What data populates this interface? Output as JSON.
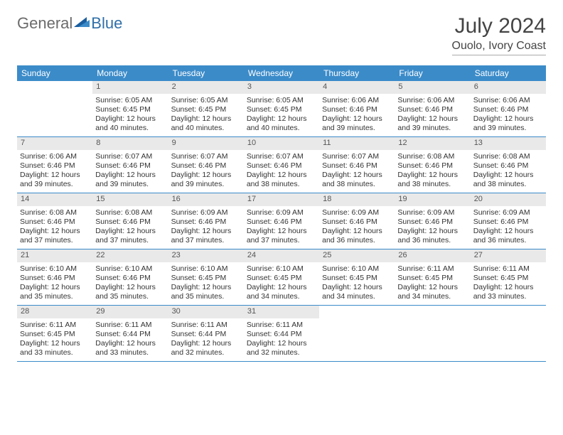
{
  "brand": {
    "text1": "General",
    "text2": "Blue"
  },
  "title": "July 2024",
  "location": "Ouolo, Ivory Coast",
  "colors": {
    "header_bg": "#3b8bc9",
    "header_text": "#ffffff",
    "daynum_bg": "#e9e9e9",
    "week_border": "#3b8bc9",
    "brand_gray": "#6b6b6b",
    "brand_blue": "#2f6fa8",
    "text": "#333333"
  },
  "typography": {
    "title_fontsize": 30,
    "location_fontsize": 16,
    "dayhead_fontsize": 12,
    "cell_fontsize": 10.5
  },
  "dayheads": [
    "Sunday",
    "Monday",
    "Tuesday",
    "Wednesday",
    "Thursday",
    "Friday",
    "Saturday"
  ],
  "weeks": [
    [
      {
        "n": "",
        "empty": true
      },
      {
        "n": "1",
        "sr": "Sunrise: 6:05 AM",
        "ss": "Sunset: 6:45 PM",
        "d1": "Daylight: 12 hours",
        "d2": "and 40 minutes."
      },
      {
        "n": "2",
        "sr": "Sunrise: 6:05 AM",
        "ss": "Sunset: 6:45 PM",
        "d1": "Daylight: 12 hours",
        "d2": "and 40 minutes."
      },
      {
        "n": "3",
        "sr": "Sunrise: 6:05 AM",
        "ss": "Sunset: 6:45 PM",
        "d1": "Daylight: 12 hours",
        "d2": "and 40 minutes."
      },
      {
        "n": "4",
        "sr": "Sunrise: 6:06 AM",
        "ss": "Sunset: 6:46 PM",
        "d1": "Daylight: 12 hours",
        "d2": "and 39 minutes."
      },
      {
        "n": "5",
        "sr": "Sunrise: 6:06 AM",
        "ss": "Sunset: 6:46 PM",
        "d1": "Daylight: 12 hours",
        "d2": "and 39 minutes."
      },
      {
        "n": "6",
        "sr": "Sunrise: 6:06 AM",
        "ss": "Sunset: 6:46 PM",
        "d1": "Daylight: 12 hours",
        "d2": "and 39 minutes."
      }
    ],
    [
      {
        "n": "7",
        "sr": "Sunrise: 6:06 AM",
        "ss": "Sunset: 6:46 PM",
        "d1": "Daylight: 12 hours",
        "d2": "and 39 minutes."
      },
      {
        "n": "8",
        "sr": "Sunrise: 6:07 AM",
        "ss": "Sunset: 6:46 PM",
        "d1": "Daylight: 12 hours",
        "d2": "and 39 minutes."
      },
      {
        "n": "9",
        "sr": "Sunrise: 6:07 AM",
        "ss": "Sunset: 6:46 PM",
        "d1": "Daylight: 12 hours",
        "d2": "and 39 minutes."
      },
      {
        "n": "10",
        "sr": "Sunrise: 6:07 AM",
        "ss": "Sunset: 6:46 PM",
        "d1": "Daylight: 12 hours",
        "d2": "and 38 minutes."
      },
      {
        "n": "11",
        "sr": "Sunrise: 6:07 AM",
        "ss": "Sunset: 6:46 PM",
        "d1": "Daylight: 12 hours",
        "d2": "and 38 minutes."
      },
      {
        "n": "12",
        "sr": "Sunrise: 6:08 AM",
        "ss": "Sunset: 6:46 PM",
        "d1": "Daylight: 12 hours",
        "d2": "and 38 minutes."
      },
      {
        "n": "13",
        "sr": "Sunrise: 6:08 AM",
        "ss": "Sunset: 6:46 PM",
        "d1": "Daylight: 12 hours",
        "d2": "and 38 minutes."
      }
    ],
    [
      {
        "n": "14",
        "sr": "Sunrise: 6:08 AM",
        "ss": "Sunset: 6:46 PM",
        "d1": "Daylight: 12 hours",
        "d2": "and 37 minutes."
      },
      {
        "n": "15",
        "sr": "Sunrise: 6:08 AM",
        "ss": "Sunset: 6:46 PM",
        "d1": "Daylight: 12 hours",
        "d2": "and 37 minutes."
      },
      {
        "n": "16",
        "sr": "Sunrise: 6:09 AM",
        "ss": "Sunset: 6:46 PM",
        "d1": "Daylight: 12 hours",
        "d2": "and 37 minutes."
      },
      {
        "n": "17",
        "sr": "Sunrise: 6:09 AM",
        "ss": "Sunset: 6:46 PM",
        "d1": "Daylight: 12 hours",
        "d2": "and 37 minutes."
      },
      {
        "n": "18",
        "sr": "Sunrise: 6:09 AM",
        "ss": "Sunset: 6:46 PM",
        "d1": "Daylight: 12 hours",
        "d2": "and 36 minutes."
      },
      {
        "n": "19",
        "sr": "Sunrise: 6:09 AM",
        "ss": "Sunset: 6:46 PM",
        "d1": "Daylight: 12 hours",
        "d2": "and 36 minutes."
      },
      {
        "n": "20",
        "sr": "Sunrise: 6:09 AM",
        "ss": "Sunset: 6:46 PM",
        "d1": "Daylight: 12 hours",
        "d2": "and 36 minutes."
      }
    ],
    [
      {
        "n": "21",
        "sr": "Sunrise: 6:10 AM",
        "ss": "Sunset: 6:46 PM",
        "d1": "Daylight: 12 hours",
        "d2": "and 35 minutes."
      },
      {
        "n": "22",
        "sr": "Sunrise: 6:10 AM",
        "ss": "Sunset: 6:46 PM",
        "d1": "Daylight: 12 hours",
        "d2": "and 35 minutes."
      },
      {
        "n": "23",
        "sr": "Sunrise: 6:10 AM",
        "ss": "Sunset: 6:45 PM",
        "d1": "Daylight: 12 hours",
        "d2": "and 35 minutes."
      },
      {
        "n": "24",
        "sr": "Sunrise: 6:10 AM",
        "ss": "Sunset: 6:45 PM",
        "d1": "Daylight: 12 hours",
        "d2": "and 34 minutes."
      },
      {
        "n": "25",
        "sr": "Sunrise: 6:10 AM",
        "ss": "Sunset: 6:45 PM",
        "d1": "Daylight: 12 hours",
        "d2": "and 34 minutes."
      },
      {
        "n": "26",
        "sr": "Sunrise: 6:11 AM",
        "ss": "Sunset: 6:45 PM",
        "d1": "Daylight: 12 hours",
        "d2": "and 34 minutes."
      },
      {
        "n": "27",
        "sr": "Sunrise: 6:11 AM",
        "ss": "Sunset: 6:45 PM",
        "d1": "Daylight: 12 hours",
        "d2": "and 33 minutes."
      }
    ],
    [
      {
        "n": "28",
        "sr": "Sunrise: 6:11 AM",
        "ss": "Sunset: 6:45 PM",
        "d1": "Daylight: 12 hours",
        "d2": "and 33 minutes."
      },
      {
        "n": "29",
        "sr": "Sunrise: 6:11 AM",
        "ss": "Sunset: 6:44 PM",
        "d1": "Daylight: 12 hours",
        "d2": "and 33 minutes."
      },
      {
        "n": "30",
        "sr": "Sunrise: 6:11 AM",
        "ss": "Sunset: 6:44 PM",
        "d1": "Daylight: 12 hours",
        "d2": "and 32 minutes."
      },
      {
        "n": "31",
        "sr": "Sunrise: 6:11 AM",
        "ss": "Sunset: 6:44 PM",
        "d1": "Daylight: 12 hours",
        "d2": "and 32 minutes."
      },
      {
        "n": "",
        "empty": true
      },
      {
        "n": "",
        "empty": true
      },
      {
        "n": "",
        "empty": true
      }
    ]
  ]
}
